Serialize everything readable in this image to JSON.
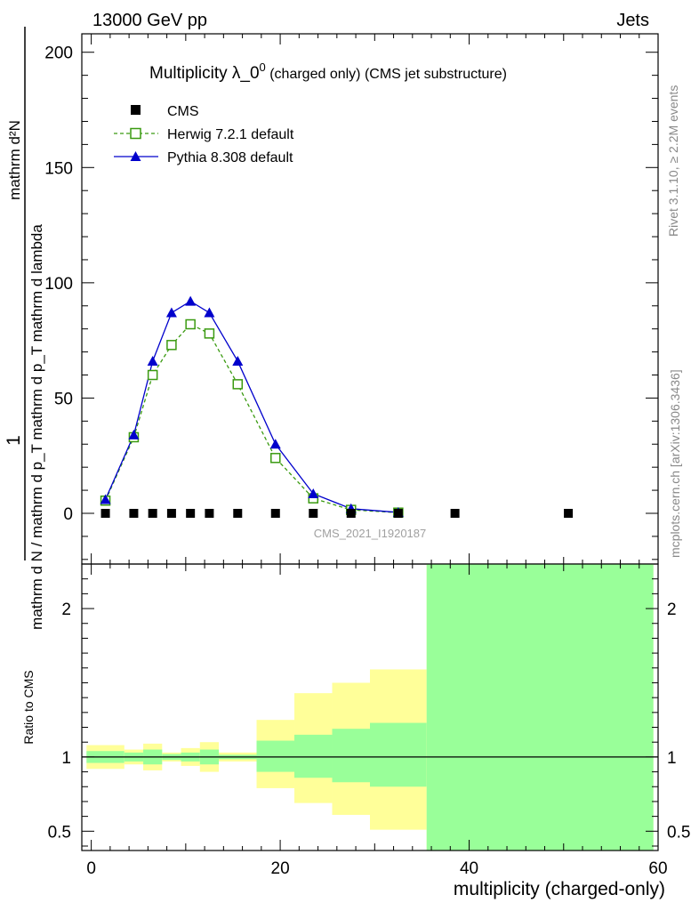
{
  "header": {
    "left": "13000 GeV pp",
    "right": "Jets"
  },
  "side_labels": {
    "rivet": "Rivet 3.1.10, ≥ 2.2M events",
    "mcplots": "mcplots.cern.ch [arXiv:1306.3436]"
  },
  "watermark": "CMS_2021_I1920187",
  "chart_data": [
    {
      "type": "line",
      "title_main": "Multiplicity λ_0",
      "title_sup": "0",
      "title_rest": " (charged only) (CMS jet substructure)",
      "ylabel_num": "1",
      "ylabel_den": "mathrm d N / mathrm d p_T mathrm d p_T mathrm d lambda",
      "ylabel_top": "mathrm d²N",
      "xlim": [
        -1,
        60
      ],
      "ylim": [
        -22,
        208
      ],
      "yticks": [
        0,
        50,
        100,
        150,
        200
      ],
      "xticks": [
        0,
        20,
        40,
        60
      ],
      "legend_position": "top-left",
      "series": [
        {
          "name": "CMS",
          "style": "data",
          "color": "#000000",
          "x": [
            1.5,
            4.5,
            6.5,
            8.5,
            10.5,
            12.5,
            15.5,
            19.5,
            23.5,
            27.5,
            32.5,
            38.5,
            50.5
          ],
          "y": [
            0,
            0,
            0,
            0,
            0,
            0,
            0,
            0,
            0,
            0,
            0,
            0,
            0
          ]
        },
        {
          "name": "Herwig 7.2.1 default",
          "style": "dashed-open-square",
          "color": "#3a9a10",
          "x": [
            1.5,
            4.5,
            6.5,
            8.5,
            10.5,
            12.5,
            15.5,
            19.5,
            23.5,
            27.5,
            32.5
          ],
          "y": [
            5.5,
            33,
            60,
            73,
            82,
            78,
            56,
            24,
            6.5,
            1.5,
            0.3
          ]
        },
        {
          "name": "Pythia 8.308 default",
          "style": "solid-filled-triangle",
          "color": "#0000cc",
          "x": [
            1.5,
            4.5,
            6.5,
            8.5,
            10.5,
            12.5,
            15.5,
            19.5,
            23.5,
            27.5,
            32.5
          ],
          "y": [
            6,
            34,
            66,
            87,
            92,
            87,
            66,
            30,
            8.5,
            2,
            0.4
          ]
        }
      ]
    },
    {
      "type": "area",
      "ylabel": "Ratio to CMS",
      "xlabel": "multiplicity (charged-only)",
      "xlim": [
        -1,
        60
      ],
      "ylim": [
        0.37,
        2.3
      ],
      "yticks": [
        0.5,
        1,
        2
      ],
      "ytick_labels": [
        "0.5",
        "1",
        "2"
      ],
      "xticks": [
        0,
        20,
        40,
        60
      ],
      "bins": [
        {
          "lo": -0.5,
          "hi": 3.5,
          "y_lo": 0.92,
          "y_hi": 1.08,
          "g_lo": 0.96,
          "g_hi": 1.04
        },
        {
          "lo": 3.5,
          "hi": 5.5,
          "y_lo": 0.95,
          "y_hi": 1.05,
          "g_lo": 0.97,
          "g_hi": 1.03
        },
        {
          "lo": 5.5,
          "hi": 7.5,
          "y_lo": 0.91,
          "y_hi": 1.09,
          "g_lo": 0.95,
          "g_hi": 1.05
        },
        {
          "lo": 7.5,
          "hi": 9.5,
          "y_lo": 0.97,
          "y_hi": 1.03,
          "g_lo": 0.98,
          "g_hi": 1.02
        },
        {
          "lo": 9.5,
          "hi": 11.5,
          "y_lo": 0.94,
          "y_hi": 1.06,
          "g_lo": 0.97,
          "g_hi": 1.03
        },
        {
          "lo": 11.5,
          "hi": 13.5,
          "y_lo": 0.9,
          "y_hi": 1.1,
          "g_lo": 0.95,
          "g_hi": 1.05
        },
        {
          "lo": 13.5,
          "hi": 17.5,
          "y_lo": 0.97,
          "y_hi": 1.03,
          "g_lo": 0.985,
          "g_hi": 1.015
        },
        {
          "lo": 17.5,
          "hi": 21.5,
          "y_lo": 0.79,
          "y_hi": 1.25,
          "g_lo": 0.9,
          "g_hi": 1.11
        },
        {
          "lo": 21.5,
          "hi": 25.5,
          "y_lo": 0.69,
          "y_hi": 1.43,
          "g_lo": 0.86,
          "g_hi": 1.15
        },
        {
          "lo": 25.5,
          "hi": 29.5,
          "y_lo": 0.61,
          "y_hi": 1.5,
          "g_lo": 0.83,
          "g_hi": 1.19
        },
        {
          "lo": 29.5,
          "hi": 35.5,
          "y_lo": 0.51,
          "y_hi": 1.59,
          "g_lo": 0.8,
          "g_hi": 1.23
        },
        {
          "lo": 35.5,
          "hi": 59.5,
          "y_lo": 0.37,
          "y_hi": 2.3,
          "g_lo": 0.37,
          "g_hi": 2.3
        }
      ],
      "band_colors": {
        "outer": "#ffff99",
        "inner": "#99ff99"
      },
      "ratio_line": 1
    }
  ]
}
